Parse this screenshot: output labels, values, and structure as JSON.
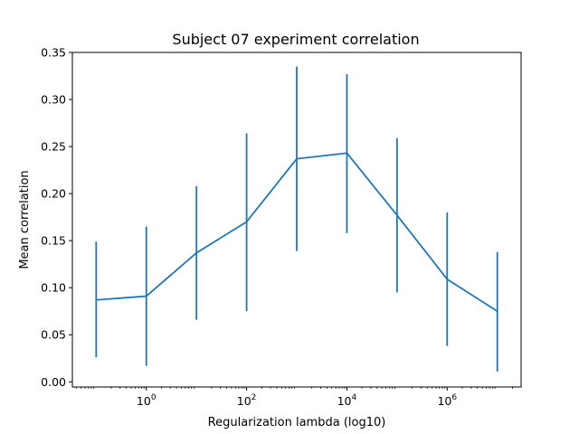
{
  "chart_data": {
    "type": "line",
    "title": "Subject 07 experiment correlation",
    "xlabel": "Regularization lambda (log10)",
    "ylabel": "Mean correlation",
    "x_scale": "log",
    "xlim": [
      0.0335,
      29800000
    ],
    "ylim": [
      -0.0055,
      0.35
    ],
    "grid": false,
    "legend": "none",
    "color": "#1f77b4",
    "x_ticks": [
      {
        "base": "10",
        "exp": "0",
        "value": 1
      },
      {
        "base": "10",
        "exp": "2",
        "value": 100
      },
      {
        "base": "10",
        "exp": "4",
        "value": 10000
      },
      {
        "base": "10",
        "exp": "6",
        "value": 1000000
      }
    ],
    "y_ticks": [
      {
        "label": "0.00",
        "value": 0.0
      },
      {
        "label": "0.05",
        "value": 0.05
      },
      {
        "label": "0.10",
        "value": 0.1
      },
      {
        "label": "0.15",
        "value": 0.15
      },
      {
        "label": "0.20",
        "value": 0.2
      },
      {
        "label": "0.25",
        "value": 0.25
      },
      {
        "label": "0.30",
        "value": 0.3
      },
      {
        "label": "0.35",
        "value": 0.35
      }
    ],
    "series": [
      {
        "x": [
          0.1,
          1,
          10,
          100,
          1000,
          10000,
          100000,
          1000000,
          10000000
        ],
        "y": [
          0.087,
          0.091,
          0.137,
          0.17,
          0.237,
          0.243,
          0.177,
          0.109,
          0.075
        ],
        "yerr_low": [
          0.026,
          0.017,
          0.066,
          0.075,
          0.139,
          0.158,
          0.095,
          0.038,
          0.011
        ],
        "yerr_high": [
          0.149,
          0.165,
          0.208,
          0.264,
          0.335,
          0.327,
          0.259,
          0.18,
          0.138
        ]
      }
    ]
  }
}
